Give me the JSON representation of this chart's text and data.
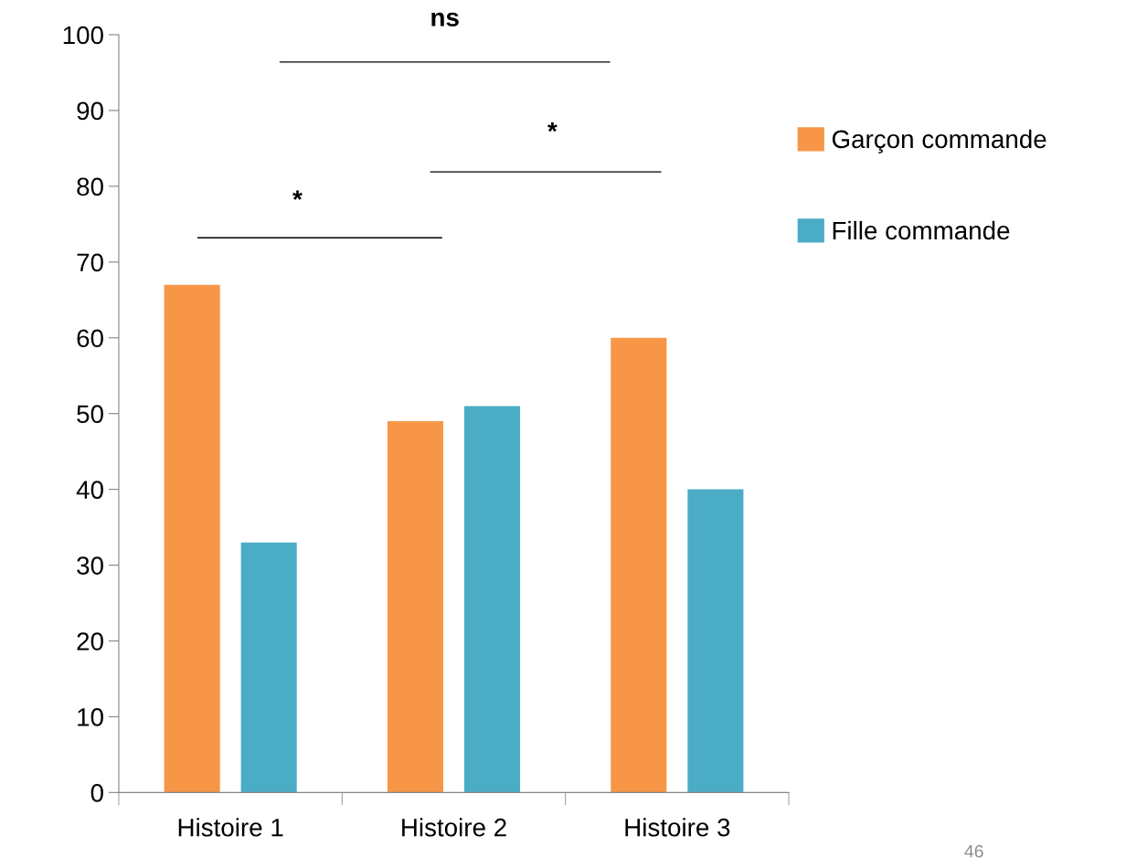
{
  "chart_data": {
    "type": "bar",
    "categories": [
      "Histoire 1",
      "Histoire 2",
      "Histoire 3"
    ],
    "series": [
      {
        "name": "Garçon commande",
        "color": "#f79646",
        "values": [
          67,
          49,
          60
        ]
      },
      {
        "name": "Fille commande",
        "color": "#4bacc6",
        "values": [
          33,
          51,
          40
        ]
      }
    ],
    "ylim": [
      0,
      100
    ],
    "yticks": [
      0,
      10,
      20,
      30,
      40,
      50,
      60,
      70,
      80,
      90,
      100
    ],
    "grid": false,
    "legend": "right",
    "annotations": [
      "*",
      "*",
      "ns",
      "46"
    ]
  }
}
